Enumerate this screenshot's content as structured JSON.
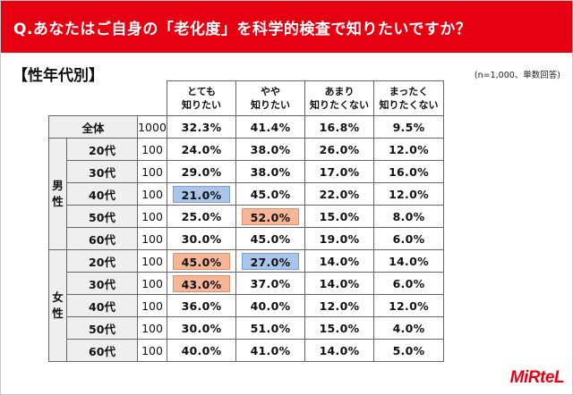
{
  "header": {
    "question": "Q.あなたはご自身の「老化度」を科学的検査で知りたいですか？"
  },
  "section_title": "【性年代別】",
  "note": "(n=1,000、単数回答)",
  "logo": "MiRteL",
  "colors": {
    "accent": "#e60012",
    "highlight_low": "#a9c5ea",
    "highlight_high": "#f7b797",
    "label_bg": "#efefef"
  },
  "chart_data": {
    "type": "table",
    "columns": [
      {
        "line1": "とても",
        "line2": "知りたい"
      },
      {
        "line1": "やや",
        "line2": "知りたい"
      },
      {
        "line1": "あまり",
        "line2": "知りたくない"
      },
      {
        "line1": "まったく",
        "line2": "知りたくない"
      }
    ],
    "total": {
      "label": "全体",
      "n": "1000",
      "values": [
        "32.3%",
        "41.4%",
        "16.8%",
        "9.5%"
      ]
    },
    "groups": [
      {
        "label": "男性",
        "rows": [
          {
            "age": "20代",
            "n": "100",
            "values": [
              "24.0%",
              "38.0%",
              "26.0%",
              "12.0%"
            ],
            "highlight": [
              null,
              null,
              null,
              null
            ]
          },
          {
            "age": "30代",
            "n": "100",
            "values": [
              "29.0%",
              "38.0%",
              "17.0%",
              "16.0%"
            ],
            "highlight": [
              null,
              null,
              null,
              null
            ]
          },
          {
            "age": "40代",
            "n": "100",
            "values": [
              "21.0%",
              "45.0%",
              "22.0%",
              "12.0%"
            ],
            "highlight": [
              "low",
              null,
              null,
              null
            ]
          },
          {
            "age": "50代",
            "n": "100",
            "values": [
              "25.0%",
              "52.0%",
              "15.0%",
              "8.0%"
            ],
            "highlight": [
              null,
              "high",
              null,
              null
            ]
          },
          {
            "age": "60代",
            "n": "100",
            "values": [
              "30.0%",
              "45.0%",
              "19.0%",
              "6.0%"
            ],
            "highlight": [
              null,
              null,
              null,
              null
            ]
          }
        ]
      },
      {
        "label": "女性",
        "rows": [
          {
            "age": "20代",
            "n": "100",
            "values": [
              "45.0%",
              "27.0%",
              "14.0%",
              "14.0%"
            ],
            "highlight": [
              "high",
              "low",
              null,
              null
            ]
          },
          {
            "age": "30代",
            "n": "100",
            "values": [
              "43.0%",
              "37.0%",
              "14.0%",
              "6.0%"
            ],
            "highlight": [
              "high",
              null,
              null,
              null
            ]
          },
          {
            "age": "40代",
            "n": "100",
            "values": [
              "36.0%",
              "40.0%",
              "12.0%",
              "12.0%"
            ],
            "highlight": [
              null,
              null,
              null,
              null
            ]
          },
          {
            "age": "50代",
            "n": "100",
            "values": [
              "30.0%",
              "51.0%",
              "15.0%",
              "4.0%"
            ],
            "highlight": [
              null,
              null,
              null,
              null
            ]
          },
          {
            "age": "60代",
            "n": "100",
            "values": [
              "40.0%",
              "41.0%",
              "14.0%",
              "5.0%"
            ],
            "highlight": [
              null,
              null,
              null,
              null
            ]
          }
        ]
      }
    ]
  }
}
